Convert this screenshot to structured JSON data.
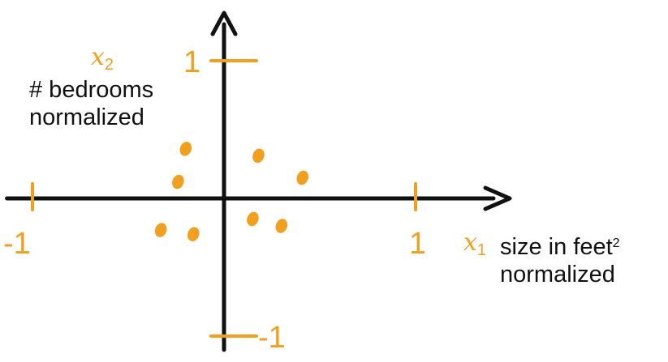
{
  "colors": {
    "accent": "#f0a01e",
    "axis": "#111111",
    "background": "#ffffff"
  },
  "chart_data": {
    "type": "scatter",
    "xlim": [
      -1.15,
      1.4
    ],
    "ylim": [
      -1.15,
      1.3
    ],
    "grid": false,
    "x_axis": {
      "symbol": "x",
      "subscript": "1",
      "label_line1": "size in feet",
      "label_sup": "2",
      "label_line2": "normalized",
      "ticks": [
        {
          "value": -1,
          "label": "-1"
        },
        {
          "value": 1,
          "label": "1"
        }
      ]
    },
    "y_axis": {
      "symbol": "x",
      "subscript": "2",
      "label_line1": "# bedrooms",
      "label_line2": "normalized",
      "ticks": [
        {
          "value": 1,
          "label": "1"
        },
        {
          "value": -1,
          "label": "-1"
        }
      ]
    },
    "points": [
      {
        "x": -0.2,
        "y": 0.36
      },
      {
        "x": -0.24,
        "y": 0.12
      },
      {
        "x": 0.18,
        "y": 0.31
      },
      {
        "x": 0.41,
        "y": 0.15
      },
      {
        "x": 0.15,
        "y": -0.15
      },
      {
        "x": 0.3,
        "y": -0.2
      },
      {
        "x": -0.33,
        "y": -0.23
      },
      {
        "x": -0.16,
        "y": -0.26
      }
    ]
  }
}
